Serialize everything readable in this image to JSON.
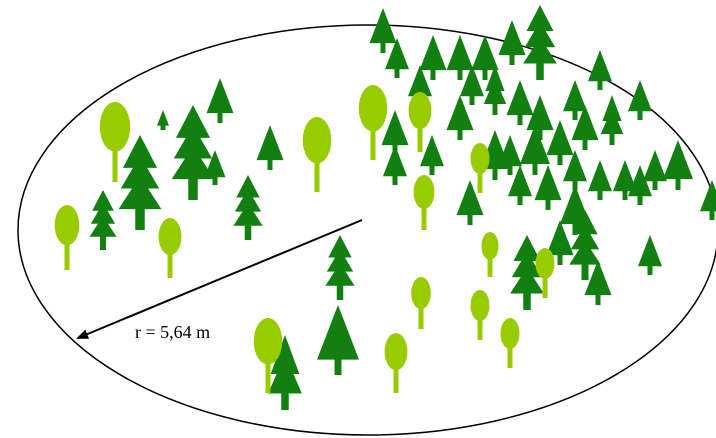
{
  "radius_label": "r = 5,64 m"
}
